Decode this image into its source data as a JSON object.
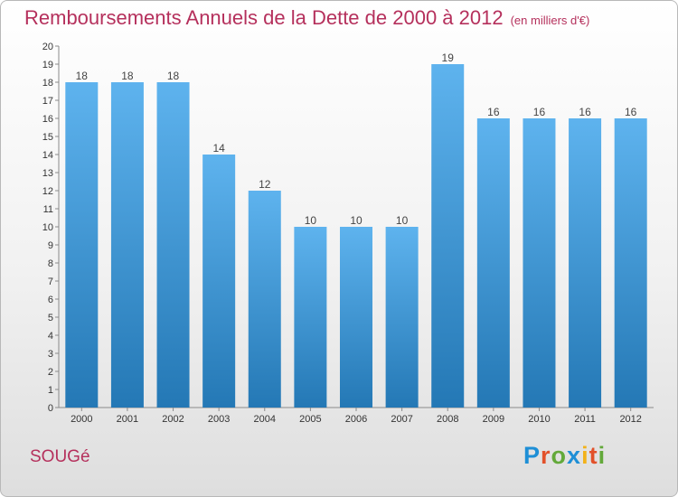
{
  "title": "Remboursements Annuels de la Dette de 2000 à 2012",
  "subtitle": "(en milliers d'€)",
  "commune": "SOUGé",
  "logo": {
    "text": "Proxiti",
    "letter_colors": [
      "#1e8fd6",
      "#e2512a",
      "#63a93a",
      "#1e8fd6",
      "#f2b21a",
      "#e2512a",
      "#63a93a"
    ]
  },
  "colors": {
    "bar_top": "#5eb3ee",
    "bar_bottom": "#2478b5",
    "title": "#b5305c"
  },
  "chart_data": {
    "type": "bar",
    "categories": [
      "2000",
      "2001",
      "2002",
      "2003",
      "2004",
      "2005",
      "2006",
      "2007",
      "2008",
      "2009",
      "2010",
      "2011",
      "2012"
    ],
    "values": [
      18,
      18,
      18,
      14,
      12,
      10,
      10,
      10,
      19,
      16,
      16,
      16,
      16
    ],
    "data_labels": [
      "18",
      "18",
      "18",
      "14",
      "12",
      "10",
      "10",
      "10",
      "19",
      "16",
      "16",
      "16",
      "16"
    ],
    "ylim": [
      0,
      20
    ],
    "yticks": [
      0,
      1,
      2,
      3,
      4,
      5,
      6,
      7,
      8,
      9,
      10,
      11,
      12,
      13,
      14,
      15,
      16,
      17,
      18,
      19,
      20
    ],
    "grid": false,
    "xlabel": "",
    "ylabel": ""
  }
}
